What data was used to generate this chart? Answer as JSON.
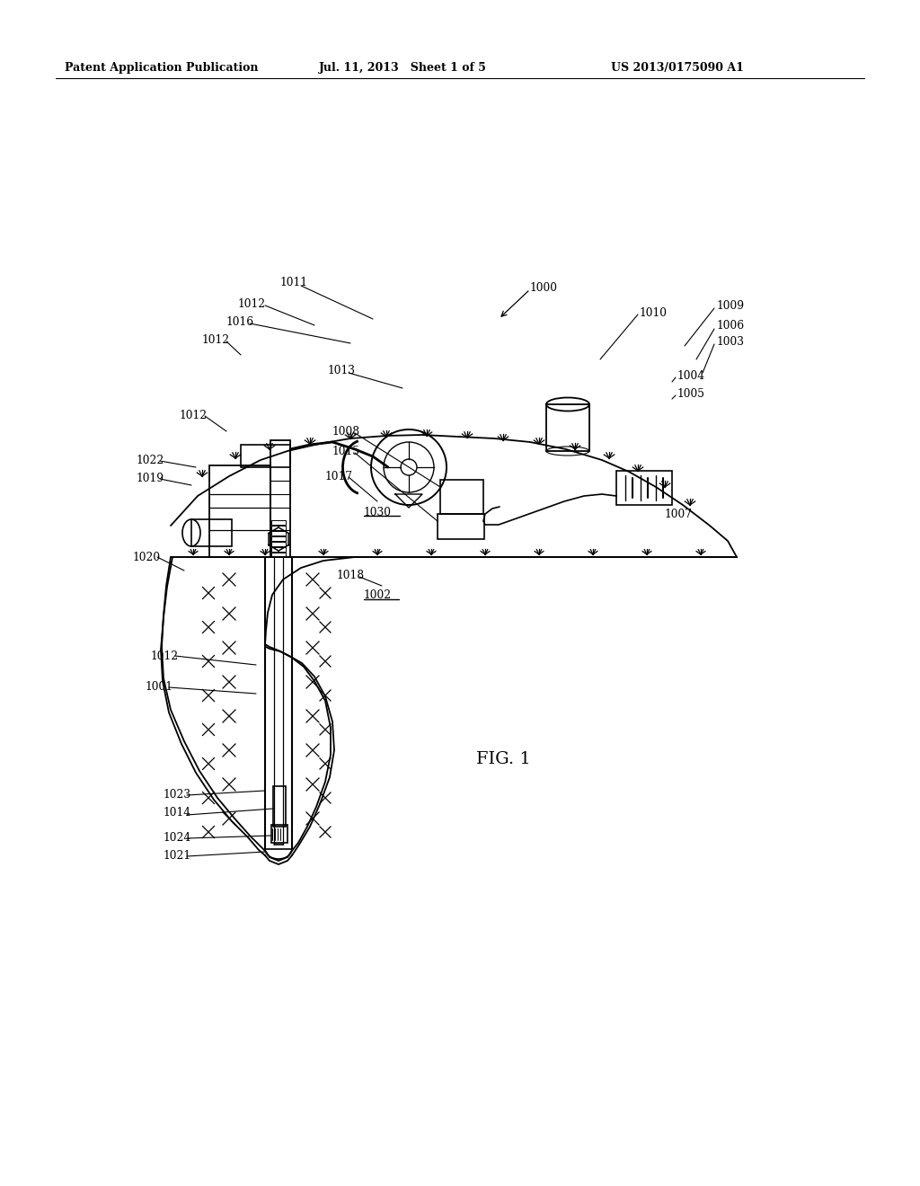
{
  "bg_color": "#ffffff",
  "header_text": "Patent Application Publication",
  "header_date": "Jul. 11, 2013   Sheet 1 of 5",
  "header_patent": "US 2013/0175090 A1"
}
